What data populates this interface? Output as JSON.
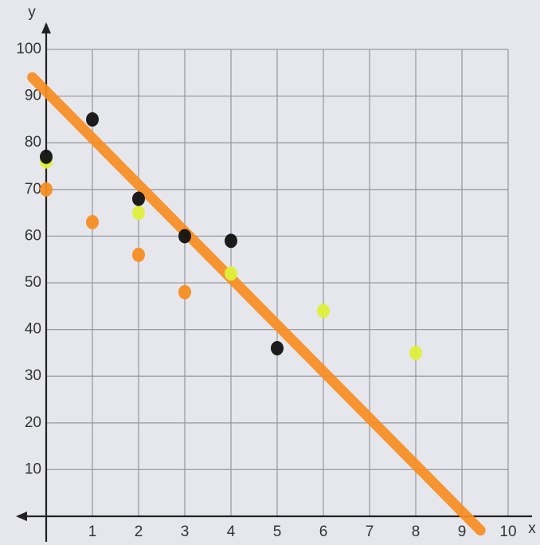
{
  "chart_data": {
    "type": "scatter",
    "x_label": "x",
    "y_label": "y",
    "xlim": [
      0,
      10
    ],
    "ylim": [
      0,
      100
    ],
    "xticks": [
      1,
      2,
      3,
      4,
      5,
      6,
      7,
      8,
      9,
      10
    ],
    "yticks": [
      10,
      20,
      30,
      40,
      50,
      60,
      70,
      80,
      90,
      100
    ],
    "grid": true,
    "series": [
      {
        "mode": "line",
        "color": "#f78d22",
        "x": [
          -0.3,
          9.4
        ],
        "values": [
          94,
          -3
        ]
      },
      {
        "mode": "markers",
        "color": "#f78d22",
        "x": [
          0,
          1,
          2,
          3
        ],
        "values": [
          70,
          63,
          56,
          48
        ]
      },
      {
        "mode": "markers",
        "color": "#def03a",
        "x": [
          0,
          2,
          4,
          6,
          8
        ],
        "values": [
          76,
          65,
          52,
          44,
          35
        ]
      },
      {
        "mode": "markers",
        "color": "#111111",
        "x": [
          0,
          1,
          2,
          3,
          4,
          5
        ],
        "values": [
          77,
          85,
          68,
          60,
          59,
          36
        ]
      }
    ]
  }
}
